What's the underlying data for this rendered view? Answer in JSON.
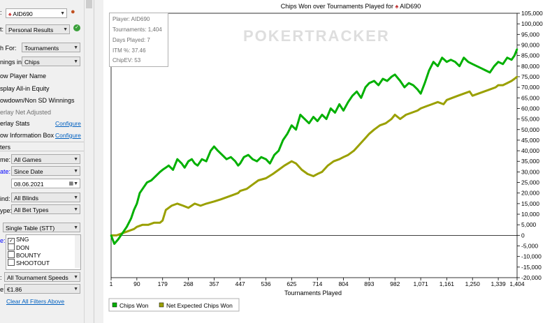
{
  "left_panel": {
    "player_label": ":",
    "player_value": "AID690",
    "report_label": "t:",
    "report_value": "Personal Results",
    "graph_for_label": "h For:",
    "graph_for_value": "Tournaments",
    "winnings_label": "nings in:",
    "winnings_value": "Chips",
    "opt_show_player_name": "ow Player Name",
    "opt_allin_equity": "splay All-in Equity",
    "opt_showdown": "owdown/Non SD Winnings",
    "opt_net_adjusted": "erlay Net Adjusted",
    "opt_overlay_stats": "erlay Stats",
    "opt_overlay_stats_link": "Configure",
    "opt_info_box": "ow Information Box",
    "opt_info_box_link": "Configure",
    "filters_header": "ters",
    "game_label": "me:",
    "game_value": "All Games",
    "date_label": "ate:",
    "date_value": "Since Date",
    "date_input": "08.06.2021",
    "blinds_label": "ind:",
    "blinds_value": "All Blinds",
    "bet_label": "ype:",
    "bet_value": "All Bet Types",
    "table_value": "Single Table (STT)",
    "table_label": "e:",
    "types": [
      {
        "label": "SNG",
        "checked": true
      },
      {
        "label": "DON",
        "checked": false
      },
      {
        "label": "BOUNTY",
        "checked": false
      },
      {
        "label": "SHOOTOUT",
        "checked": false
      }
    ],
    "speed_label": ":",
    "speed_value": "All Tournament Speeds",
    "buyin_label": "e:",
    "buyin_value": "€1.86",
    "clear_filters": "Clear All Filters Above"
  },
  "chart_data": {
    "type": "line",
    "title": "Chips Won over Tournaments Played for",
    "title_player": "AID690",
    "xlabel": "Tournaments Played",
    "ylabel": "",
    "xlim": [
      1,
      1404
    ],
    "ylim": [
      -20000,
      105000
    ],
    "x_ticks": [
      "1",
      "90",
      "179",
      "268",
      "357",
      "447",
      "536",
      "625",
      "714",
      "804",
      "893",
      "982",
      "1,071",
      "1,161",
      "1,250",
      "1,339",
      "1,404"
    ],
    "x_tick_values": [
      1,
      90,
      179,
      268,
      357,
      447,
      536,
      625,
      714,
      804,
      893,
      982,
      1071,
      1161,
      1250,
      1339,
      1404
    ],
    "y_ticks": [
      -20000,
      -15000,
      -10000,
      -5000,
      0,
      5000,
      10000,
      15000,
      20000,
      25000,
      30000,
      35000,
      40000,
      45000,
      50000,
      55000,
      60000,
      65000,
      70000,
      75000,
      80000,
      85000,
      90000,
      95000,
      100000,
      105000
    ],
    "y_tick_labels": [
      "-20,000",
      "-15,000",
      "-10,000",
      "-5,000",
      "0",
      "5,000",
      "10,000",
      "15,000",
      "20,000",
      "25,000",
      "30,000",
      "35,000",
      "40,000",
      "45,000",
      "50,000",
      "55,000",
      "60,000",
      "65,000",
      "70,000",
      "75,000",
      "80,000",
      "85,000",
      "90,000",
      "95,000",
      "100,000",
      "105,000"
    ],
    "grid": false,
    "legend_position": "bottom-left",
    "series": [
      {
        "name": "Chips Won",
        "color": "#00b000",
        "x": [
          1,
          12,
          25,
          40,
          55,
          70,
          80,
          90,
          100,
          110,
          125,
          140,
          155,
          170,
          179,
          190,
          200,
          215,
          230,
          245,
          255,
          268,
          280,
          290,
          300,
          315,
          330,
          345,
          357,
          370,
          385,
          400,
          415,
          430,
          440,
          447,
          460,
          475,
          490,
          505,
          520,
          536,
          550,
          565,
          580,
          595,
          610,
          625,
          640,
          655,
          670,
          685,
          700,
          714,
          730,
          745,
          760,
          775,
          790,
          804,
          820,
          835,
          850,
          865,
          880,
          893,
          910,
          925,
          940,
          955,
          970,
          982,
          1000,
          1015,
          1030,
          1045,
          1060,
          1071,
          1085,
          1100,
          1115,
          1130,
          1145,
          1161,
          1175,
          1190,
          1205,
          1220,
          1235,
          1250,
          1265,
          1280,
          1295,
          1310,
          1325,
          1339,
          1355,
          1370,
          1385,
          1395,
          1404
        ],
        "y": [
          0,
          -4000,
          -2000,
          1000,
          4000,
          8000,
          12000,
          15000,
          20000,
          22000,
          25000,
          26000,
          28000,
          30000,
          31000,
          32000,
          33000,
          31000,
          36000,
          34000,
          32000,
          35000,
          36000,
          34000,
          33000,
          36000,
          35000,
          40000,
          42000,
          40000,
          38000,
          36000,
          37000,
          35000,
          33000,
          34000,
          37000,
          38000,
          36000,
          35000,
          37000,
          36000,
          34000,
          38000,
          40000,
          45000,
          48000,
          52000,
          50000,
          57000,
          55000,
          53000,
          56000,
          54000,
          57000,
          55000,
          60000,
          58000,
          62000,
          59000,
          63000,
          66000,
          68000,
          65000,
          70000,
          72000,
          73000,
          71000,
          74000,
          73000,
          75000,
          76000,
          73000,
          70000,
          72000,
          71000,
          69000,
          67000,
          72000,
          78000,
          82000,
          80000,
          84000,
          82000,
          83000,
          82000,
          80000,
          84000,
          82000,
          81000,
          80000,
          79000,
          78000,
          77000,
          80000,
          82000,
          81000,
          84000,
          83000,
          85000,
          88000
        ]
      },
      {
        "name": "Net Expected Chips Won",
        "color": "#9aa000",
        "x": [
          1,
          20,
          40,
          60,
          80,
          90,
          110,
          130,
          150,
          170,
          179,
          190,
          210,
          230,
          250,
          268,
          290,
          310,
          330,
          357,
          380,
          400,
          420,
          440,
          447,
          470,
          490,
          510,
          536,
          560,
          580,
          600,
          625,
          640,
          660,
          680,
          700,
          714,
          730,
          750,
          770,
          790,
          804,
          820,
          840,
          860,
          880,
          893,
          910,
          930,
          950,
          970,
          982,
          1000,
          1020,
          1040,
          1060,
          1071,
          1090,
          1110,
          1130,
          1150,
          1161,
          1180,
          1200,
          1220,
          1240,
          1250,
          1270,
          1290,
          1310,
          1330,
          1339,
          1355,
          1370,
          1385,
          1395,
          1404
        ],
        "y": [
          0,
          0,
          1000,
          2000,
          3000,
          4000,
          5000,
          5000,
          6000,
          6000,
          7000,
          12000,
          14000,
          15000,
          14000,
          13000,
          15000,
          14000,
          15000,
          16000,
          17000,
          18000,
          19000,
          20000,
          21000,
          22000,
          24000,
          26000,
          27000,
          29000,
          31000,
          33000,
          35000,
          34000,
          31000,
          29000,
          28000,
          29000,
          30000,
          33000,
          35000,
          36000,
          37000,
          38000,
          40000,
          43000,
          46000,
          48000,
          50000,
          52000,
          53000,
          55000,
          57000,
          55000,
          57000,
          58000,
          59000,
          60000,
          61000,
          62000,
          63000,
          62000,
          64000,
          65000,
          66000,
          67000,
          68000,
          66000,
          67000,
          68000,
          69000,
          70000,
          71000,
          71000,
          72000,
          73000,
          74000,
          75000
        ]
      }
    ]
  },
  "info_box": [
    "Player: AID690",
    "Tournaments: 1,404",
    "Days Played: 7",
    "ITM %: 37.46",
    "ChipEV: 53"
  ],
  "watermark": "POKERTRACKER"
}
